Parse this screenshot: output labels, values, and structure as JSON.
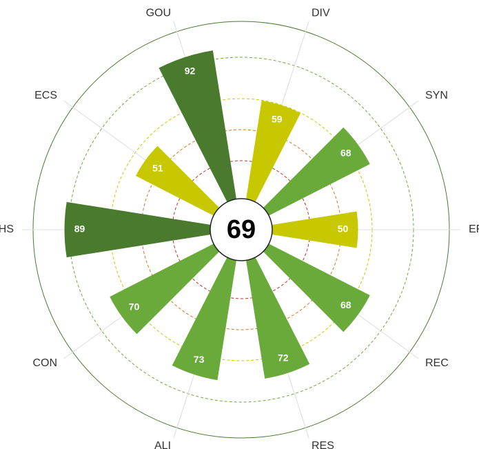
{
  "chart_data": {
    "type": "radial_bar",
    "center_value": 69,
    "categories": [
      "EFF",
      "REC",
      "RES",
      "ALI",
      "CON",
      "VHS",
      "ECS",
      "GOU",
      "DIV",
      "SYN"
    ],
    "values": [
      50,
      68,
      72,
      73,
      70,
      89,
      51,
      92,
      59,
      68
    ],
    "colors": [
      "#c8c800",
      "#6aaa3a",
      "#6aaa3a",
      "#6aaa3a",
      "#6aaa3a",
      "#4a7a2e",
      "#c8c800",
      "#4a7a2e",
      "#c8c800",
      "#6aaa3a"
    ]
  }
}
